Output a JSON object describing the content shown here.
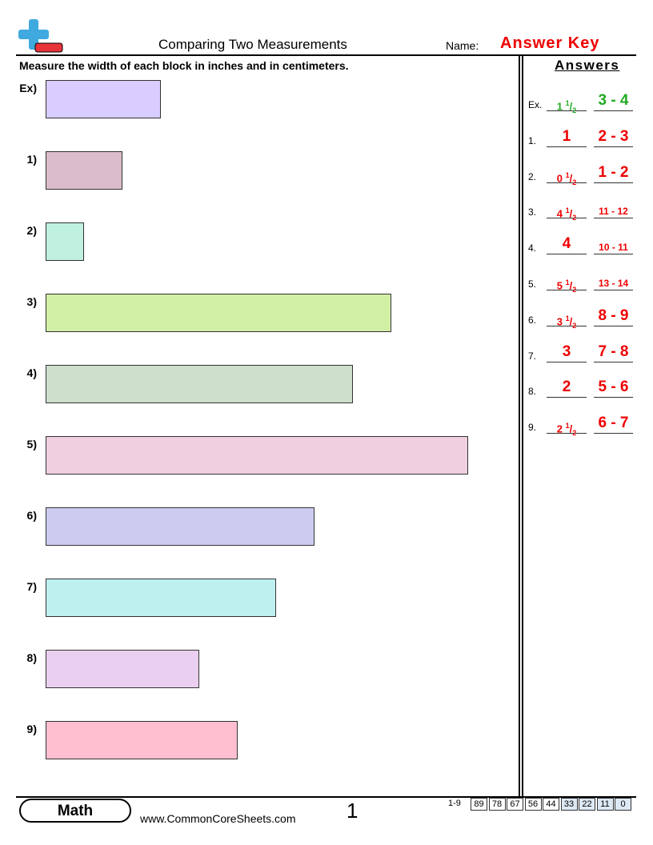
{
  "header": {
    "title": "Comparing Two Measurements",
    "name_label": "Name:",
    "answer_key": "Answer Key"
  },
  "instructions": "Measure the width of each block in inches and in centimeters.",
  "problems": [
    "Ex)",
    "1)",
    "2)",
    "3)",
    "4)",
    "5)",
    "6)",
    "7)",
    "8)",
    "9)"
  ],
  "answers": {
    "heading": "Answers",
    "items": [
      {
        "label": "Ex.",
        "whole": "1",
        "num": "1",
        "den": "2",
        "cm": "3 - 4"
      },
      {
        "label": "1.",
        "whole": "1",
        "cm": "2 - 3"
      },
      {
        "label": "2.",
        "whole": "0",
        "num": "1",
        "den": "2",
        "cm": "1 - 2"
      },
      {
        "label": "3.",
        "whole": "4",
        "num": "1",
        "den": "2",
        "cm": "11 - 12"
      },
      {
        "label": "4.",
        "whole": "4",
        "cm": "10 - 11"
      },
      {
        "label": "5.",
        "whole": "5",
        "num": "1",
        "den": "2",
        "cm": "13 - 14"
      },
      {
        "label": "6.",
        "whole": "3",
        "num": "1",
        "den": "2",
        "cm": "8 - 9"
      },
      {
        "label": "7.",
        "whole": "3",
        "cm": "7 - 8"
      },
      {
        "label": "8.",
        "whole": "2",
        "cm": "5 - 6"
      },
      {
        "label": "9.",
        "whole": "2",
        "num": "1",
        "den": "2",
        "cm": "6 - 7"
      }
    ]
  },
  "footer": {
    "subject": "Math",
    "website": "www.CommonCoreSheets.com",
    "page": "1",
    "score_label": "1-9",
    "scores": [
      "89",
      "78",
      "67",
      "56",
      "44",
      "33",
      "22",
      "11",
      "0"
    ]
  }
}
